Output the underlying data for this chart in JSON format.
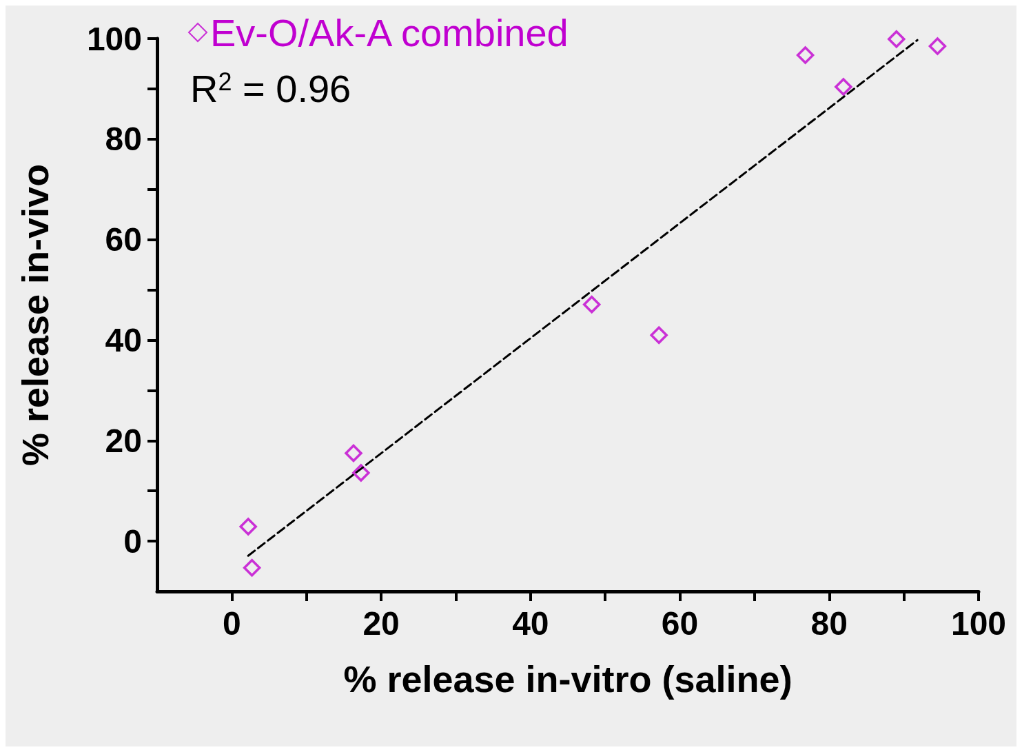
{
  "chart_data": {
    "type": "scatter",
    "xlabel": "% release in-vitro (saline)",
    "ylabel": "% release in-vivo",
    "xlim": [
      -10,
      100
    ],
    "ylim": [
      -10,
      100
    ],
    "xticks": [
      0,
      {
        "value": 10,
        "label": null
      },
      20,
      {
        "value": 30,
        "label": null
      },
      40,
      {
        "value": 50,
        "label": null
      },
      60,
      {
        "value": 70,
        "label": null
      },
      80,
      {
        "value": 90,
        "label": null
      },
      100
    ],
    "yticks": [
      0,
      {
        "value": 10,
        "label": null
      },
      20,
      {
        "value": 30,
        "label": null
      },
      40,
      {
        "value": 50,
        "label": null
      },
      60,
      {
        "value": 70,
        "label": null
      },
      80,
      {
        "value": 90,
        "label": null
      },
      100
    ],
    "series": [
      {
        "name": "Ev-O/Ak-A combined",
        "color": "#c000d0",
        "marker": "diamond",
        "x": [
          2.2,
          2.7,
          16.3,
          17.3,
          48.2,
          57.2,
          76.8,
          81.9,
          89.0,
          94.5
        ],
        "values": [
          2.9,
          -5.3,
          17.5,
          13.6,
          47.1,
          41.0,
          96.7,
          90.4,
          99.9,
          98.5
        ]
      },
      {
        "type": "line",
        "color": "#000000",
        "line_style": "dashed",
        "marker": "none",
        "x": [
          2.2,
          91.8
        ],
        "values": [
          -2.9,
          99.7
        ]
      }
    ],
    "annotations": [
      "R$^{2}$ = 0.96"
    ],
    "legend": "top left"
  }
}
